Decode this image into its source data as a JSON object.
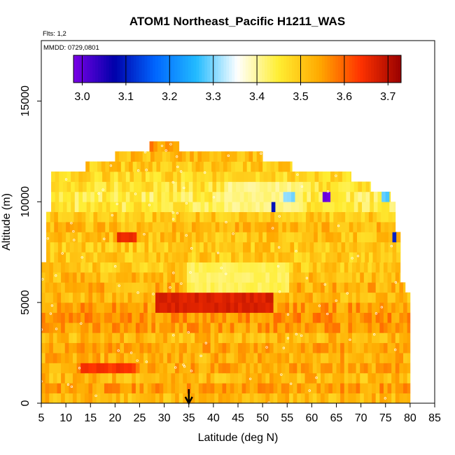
{
  "chart_data": {
    "type": "heatmap",
    "title": "ATOM1 Northeast_Pacific H1211_WAS",
    "annotations": [
      "Flts: 1,2",
      "MMDD: 0729,0801"
    ],
    "xlabel": "Latitude (deg N)",
    "ylabel": "Altitude (m)",
    "xlim": [
      5,
      85
    ],
    "ylim": [
      0,
      18000
    ],
    "x_ticks": [
      5,
      10,
      15,
      20,
      25,
      30,
      35,
      40,
      45,
      50,
      55,
      60,
      65,
      70,
      75,
      80,
      85
    ],
    "y_ticks": [
      0,
      5000,
      10000,
      15000
    ],
    "x_tick_labels": [
      "5",
      "10",
      "15",
      "20",
      "25",
      "30",
      "35",
      "40",
      "45",
      "50",
      "55",
      "60",
      "65",
      "70",
      "75",
      "80",
      "85"
    ],
    "y_tick_labels": [
      "0",
      "5000",
      "10000",
      "15000"
    ],
    "colorbar": {
      "min": 2.98,
      "max": 3.73,
      "ticks": [
        3.0,
        3.1,
        3.2,
        3.3,
        3.4,
        3.5,
        3.6,
        3.7
      ],
      "tick_labels": [
        "3.0",
        "3.1",
        "3.2",
        "3.3",
        "3.4",
        "3.5",
        "3.6",
        "3.7"
      ],
      "colors": [
        "#7a00e6",
        "#0000aa",
        "#0066ff",
        "#22bbff",
        "#ffffff",
        "#ffee33",
        "#ffaa00",
        "#ff3300",
        "#990000"
      ]
    },
    "grid": false,
    "marker": {
      "x": 35,
      "direction": "down",
      "label": ""
    },
    "layers": [
      {
        "alt": 250,
        "lat_range": [
          5,
          80
        ],
        "value": 3.52
      },
      {
        "alt": 750,
        "lat_range": [
          5,
          80
        ],
        "value": 3.55
      },
      {
        "alt": 1250,
        "lat_range": [
          5,
          80
        ],
        "value": 3.52
      },
      {
        "alt": 1750,
        "lat_range": [
          5,
          80
        ],
        "value": 3.54
      },
      {
        "alt": 2250,
        "lat_range": [
          5,
          80
        ],
        "value": 3.53
      },
      {
        "alt": 2750,
        "lat_range": [
          5,
          80
        ],
        "value": 3.54
      },
      {
        "alt": 3250,
        "lat_range": [
          5,
          80
        ],
        "value": 3.52
      },
      {
        "alt": 3750,
        "lat_range": [
          5,
          80
        ],
        "value": 3.55
      },
      {
        "alt": 4250,
        "lat_range": [
          5,
          80
        ],
        "value": 3.56
      },
      {
        "alt": 4750,
        "lat_range": [
          5,
          80
        ],
        "value": 3.55
      },
      {
        "alt": 5250,
        "lat_range": [
          5,
          80
        ],
        "value": 3.52
      },
      {
        "alt": 5750,
        "lat_range": [
          5,
          79
        ],
        "value": 3.53
      },
      {
        "alt": 6250,
        "lat_range": [
          5,
          78
        ],
        "value": 3.52
      },
      {
        "alt": 6750,
        "lat_range": [
          5,
          78
        ],
        "value": 3.5
      },
      {
        "alt": 7250,
        "lat_range": [
          6,
          78
        ],
        "value": 3.5
      },
      {
        "alt": 7750,
        "lat_range": [
          6,
          78
        ],
        "value": 3.5
      },
      {
        "alt": 8250,
        "lat_range": [
          6,
          78
        ],
        "value": 3.51
      },
      {
        "alt": 8750,
        "lat_range": [
          6,
          77
        ],
        "value": 3.52
      },
      {
        "alt": 9250,
        "lat_range": [
          6,
          77
        ],
        "value": 3.5
      },
      {
        "alt": 9750,
        "lat_range": [
          7,
          77
        ],
        "value": 3.45
      },
      {
        "alt": 10250,
        "lat_range": [
          7,
          76
        ],
        "value": 3.44
      },
      {
        "alt": 10750,
        "lat_range": [
          7,
          72
        ],
        "value": 3.46
      },
      {
        "alt": 11250,
        "lat_range": [
          7,
          68
        ],
        "value": 3.48
      },
      {
        "alt": 11750,
        "lat_range": [
          14,
          56
        ],
        "value": 3.5
      },
      {
        "alt": 12250,
        "lat_range": [
          20,
          50
        ],
        "value": 3.52
      },
      {
        "alt": 12750,
        "lat_range": [
          27,
          33
        ],
        "value": 3.55
      }
    ],
    "features": [
      {
        "alt_range": [
          4300,
          5300
        ],
        "lat_range": [
          28,
          52
        ],
        "value": 3.67
      },
      {
        "alt_range": [
          5500,
          7200
        ],
        "lat_range": [
          34,
          55
        ],
        "value": 3.43
      },
      {
        "alt_range": [
          9600,
          11200
        ],
        "lat_range": [
          42,
          58
        ],
        "value": 3.41
      },
      {
        "alt_range": [
          8000,
          8400
        ],
        "lat_range": [
          20,
          24
        ],
        "value": 3.65
      },
      {
        "alt_range": [
          1500,
          2000
        ],
        "lat_range": [
          13,
          24
        ],
        "value": 3.64
      },
      {
        "alt_range": [
          9600,
          10000
        ],
        "lat_range": [
          51,
          52
        ],
        "value": 3.08
      },
      {
        "alt_range": [
          8000,
          8500
        ],
        "lat_range": [
          76,
          77
        ],
        "value": 3.1
      },
      {
        "alt_range": [
          9900,
          10300
        ],
        "lat_range": [
          62,
          63
        ],
        "value": 3.0
      },
      {
        "alt_range": [
          10100,
          10700
        ],
        "lat_range": [
          74,
          75
        ],
        "value": 3.28
      },
      {
        "alt_range": [
          9900,
          10400
        ],
        "lat_range": [
          54,
          56
        ],
        "value": 3.3
      }
    ]
  }
}
